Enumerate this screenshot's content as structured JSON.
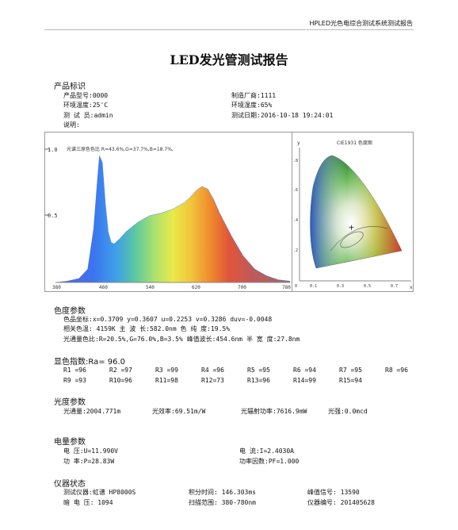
{
  "header": {
    "text": "HPLED光色电综合测试系统测试报告"
  },
  "title": "LED发光管测试报告",
  "product": {
    "heading": "产品标识",
    "model": "产品型号:0000",
    "manufacturer": "制造厂商:1111",
    "env_temp": "环境温度:25'C",
    "env_humidity": "环境湿度:65%",
    "tester": "测 试 员:admin",
    "test_date": "测试日期:2016-10-18 19:24:01",
    "note": "说明:"
  },
  "spectrum": {
    "label": "光谱三原色色比 R=43.6%,G=37.7%,B=18.7%,",
    "y_ticks": [
      "1.0",
      "0.5"
    ],
    "x_ticks": [
      "380",
      "460",
      "540",
      "620",
      "700",
      "780"
    ]
  },
  "chart_data": [
    {
      "type": "area",
      "x": [
        380,
        400,
        420,
        435,
        445,
        452,
        455,
        460,
        465,
        470,
        475,
        480,
        490,
        500,
        520,
        540,
        560,
        580,
        600,
        610,
        620,
        630,
        640,
        650,
        660,
        680,
        700,
        720,
        740,
        760,
        780
      ],
      "y": [
        0.0,
        0.01,
        0.03,
        0.1,
        0.4,
        0.8,
        0.95,
        0.9,
        0.6,
        0.38,
        0.3,
        0.29,
        0.33,
        0.38,
        0.45,
        0.5,
        0.52,
        0.55,
        0.6,
        0.64,
        0.69,
        0.72,
        0.7,
        0.62,
        0.52,
        0.35,
        0.2,
        0.1,
        0.05,
        0.02,
        0.01
      ],
      "xlim": [
        380,
        780
      ],
      "ylim": [
        0,
        1.0
      ]
    },
    {
      "type": "scatter",
      "title": "CIE1931 色度图",
      "xlabel": "x",
      "ylabel": "y",
      "x_ticks": [
        "0",
        "0.1",
        "0.3",
        "0.5",
        "0.7"
      ],
      "y_ticks": [
        ".8",
        ".6",
        ".4",
        ".2",
        "0"
      ],
      "x": [
        0.3709
      ],
      "y": [
        0.3607
      ],
      "xlim": [
        0,
        0.8
      ],
      "ylim": [
        0,
        0.9
      ]
    }
  ],
  "chromaticity": {
    "heading": "色度参数",
    "row1": "色品坐标:x=0.3709  y=0.3607     u=0.2253  v=0.3286    duv=-0.0048",
    "row2": "相关色温: 4159K   主 波 长:582.0nm   色 纯 度:19.5%",
    "row3": "光通量色比:R=20.5%,G=76.0%,B=3.5%    峰值波长:454.6nm   半 宽 度:27.8nm"
  },
  "cri": {
    "heading": "显色指数:Ra= 96.0",
    "r1": "R1 =96",
    "r2": "R2 =97",
    "r3": "R3 =99",
    "r4": "R4 =96",
    "r5": "R5 =95",
    "r6": "R6 =94",
    "r7": "R7 =95",
    "r8": "R8 =96",
    "r9": "R9 =93",
    "r10": "R10=96",
    "r11": "R11=98",
    "r12": "R12=73",
    "r13": "R13=96",
    "r14": "R14=99",
    "r15": "R15=94"
  },
  "photometric": {
    "heading": "光度参数",
    "flux": "光通量:2004.771m",
    "efficacy": "光效率:69.51m/W",
    "radiant": "光辐射功率:7616.9mW",
    "intensity": "光强:0.0mcd"
  },
  "electrical": {
    "heading": "电量参数",
    "voltage": "电     压:U=11.990V",
    "current": "电     流:I=2.4030A",
    "power": "功     率:P=28.83W",
    "pf": "功率因数:PF=1.000"
  },
  "instrument": {
    "heading": "仪器状态",
    "device": "测试仪器:虹谱 HP8000S",
    "integration": "积分时间: 146.303ms",
    "peak_signal": "峰值信号: 13590",
    "dark": "暗 电 压: 1094",
    "scan": "扫描范围: 380-780nm",
    "serial": "仪器编号: 201405628"
  },
  "colors": {
    "border": "#999999",
    "text": "#111111"
  }
}
